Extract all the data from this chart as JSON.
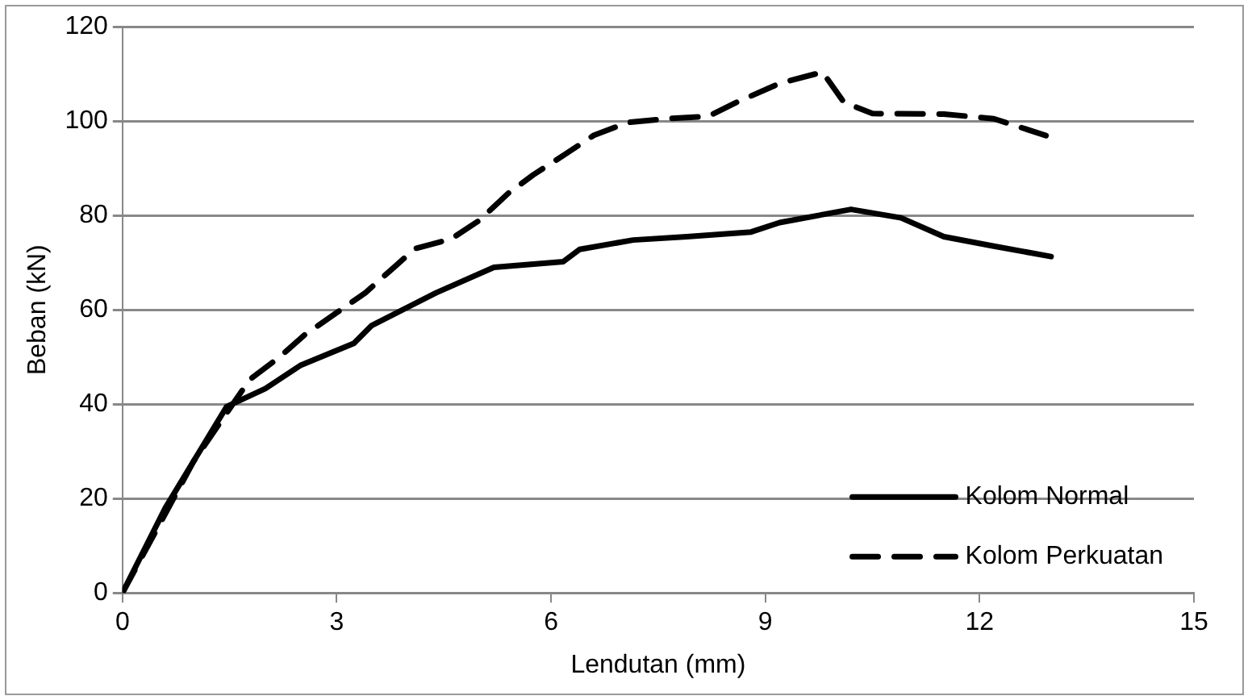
{
  "chart_data": {
    "type": "line",
    "xlabel": "Lendutan (mm)",
    "ylabel": "Beban (kN)",
    "xlim": [
      0,
      15
    ],
    "xticks": [
      0,
      3,
      6,
      9,
      12,
      15
    ],
    "ylim": [
      0,
      120
    ],
    "yticks": [
      0,
      20,
      40,
      60,
      80,
      100,
      120
    ],
    "grid": "y",
    "legend": "bottom right",
    "marker": "none",
    "series": [
      {
        "name": "Kolom Normal",
        "color": "#000000",
        "line_style": "solid",
        "x": [
          0,
          0.6,
          1,
          1.46,
          2,
          2.5,
          3.24,
          3.49,
          4.39,
          5.2,
          6.17,
          6.4,
          7.15,
          7.9,
          8.8,
          9.2,
          10.2,
          10.9,
          11.5,
          12.2,
          13.0
        ],
        "values": [
          0,
          18,
          28,
          39.5,
          43.3,
          48.3,
          52.9,
          56.7,
          63.6,
          69,
          70.2,
          72.8,
          74.8,
          75.5,
          76.5,
          78.5,
          81.3,
          79.5,
          75.5,
          73.5,
          71.3
        ]
      },
      {
        "name": "Kolom Perkuatan",
        "color": "#000000",
        "line_style": "dashed",
        "x": [
          0,
          1,
          1.78,
          2.2,
          2.56,
          3,
          3.4,
          3.8,
          4.1,
          4.6,
          5,
          5.4,
          5.75,
          6.2,
          6.6,
          7.07,
          7.6,
          8.2,
          8.6,
          9.2,
          9.8,
          10.1,
          10.5,
          11.5,
          12.2,
          13.0
        ],
        "values": [
          0,
          28,
          45.2,
          50,
          54.8,
          59.4,
          63.6,
          69,
          73,
          75,
          79,
          84.7,
          88.6,
          93,
          97,
          99.7,
          100.5,
          101,
          104,
          108,
          110.4,
          104,
          101.6,
          101.5,
          100.5,
          96.6
        ]
      }
    ]
  }
}
